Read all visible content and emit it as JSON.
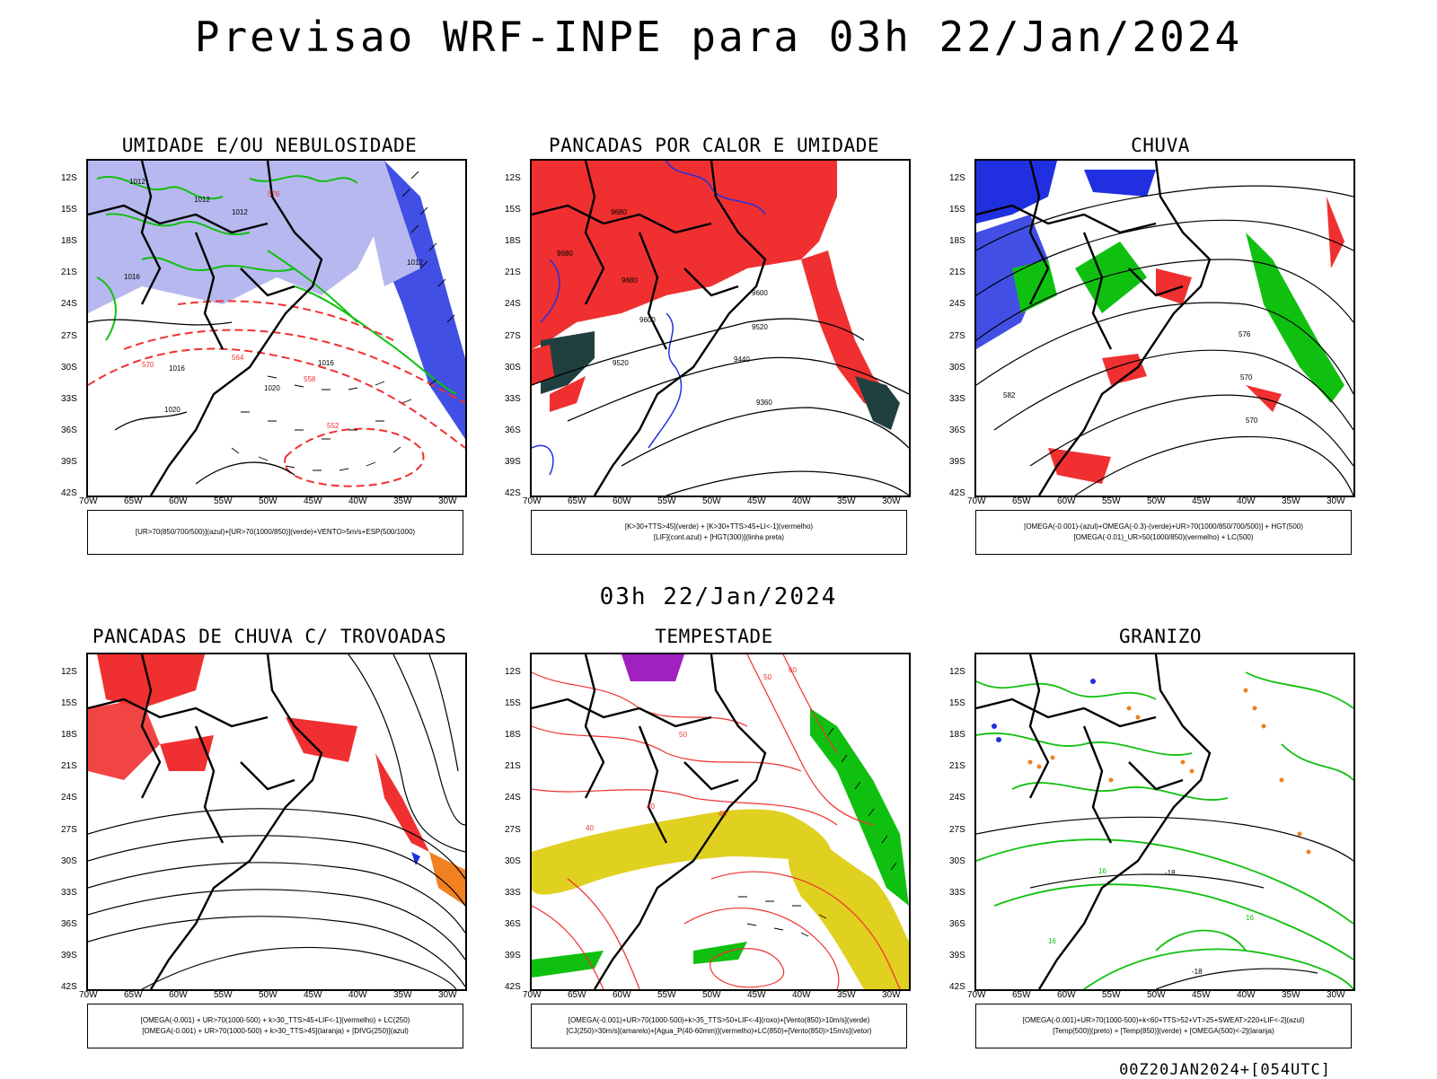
{
  "title": "Previsao WRF-INPE  para 03h 22/Jan/2024",
  "mid_time": "03h 22/Jan/2024",
  "footer": "00Z20JAN2024+[054UTC]",
  "lat_labels": [
    "12S",
    "15S",
    "18S",
    "21S",
    "24S",
    "27S",
    "30S",
    "33S",
    "36S",
    "39S",
    "42S"
  ],
  "lon_labels": [
    "70W",
    "65W",
    "60W",
    "55W",
    "50W",
    "45W",
    "40W",
    "35W",
    "30W"
  ],
  "panels": [
    {
      "title": "UMIDADE E/OU NEBULOSIDADE",
      "legend": [
        "[UR>70(850/700/500)](azul)+[UR>70(1000/850)](verde)+VENTO>5m/s+ESP(500/1000)"
      ],
      "contour_labels": [
        "1012",
        "1012",
        "1012",
        "1012",
        "1016",
        "1016",
        "1020",
        "1020",
        "1016",
        "576",
        "570",
        "564",
        "558",
        "552"
      ]
    },
    {
      "title": "PANCADAS POR CALOR E UMIDADE",
      "legend": [
        "[K>30+TTS>45](verde)  +  [K>30+TTS>45+LI<-1](vermelho)",
        "[LIF](cont.azul)  +  [HGT(300)](linha preta)"
      ],
      "contour_labels": [
        "9680",
        "9680",
        "9680",
        "9600",
        "9600",
        "9520",
        "9520",
        "9440",
        "9360"
      ]
    },
    {
      "title": "CHUVA",
      "legend": [
        "[OMEGA(-0.001)-(azul)+OMEGA(-0.3)-(verde)+UR>70(1000/850/700/500)]  +  HGT(500)",
        "[OMEGA(-0.01)_UR>50(1000/850)(vermelho)  +  LC(500)"
      ],
      "contour_labels": [
        "576",
        "570",
        "570",
        "582"
      ]
    },
    {
      "title": "PANCADAS DE CHUVA C/ TROVOADAS",
      "legend": [
        "[OMEGA(-0.001)  +  UR>70(1000-500)  +  k>30_TTS>45+LIF<-1](vermelho)  +  LC(250)",
        "[OMEGA(-0.001)  +  UR>70(1000-500)  +  k>30_TTS>45](laranja)  +  [DIVG(250)](azul)"
      ],
      "contour_labels": []
    },
    {
      "title": "TEMPESTADE",
      "legend": [
        "[OMEGA(-0.001)+UR>70(1000-500)+k>35_TTS>50+LIF<-4](roxo)+[Vento(850)>10m/s](verde)",
        "[CJ(250)>30m/s](amarelo)+[Agua_P(40-60mm)](vermelho)+LC(850)+[Vento(850)>15m/s](vetor)"
      ],
      "contour_labels": [
        "40",
        "40",
        "40",
        "50",
        "50",
        "60"
      ]
    },
    {
      "title": "GRANIZO",
      "legend": [
        "[OMEGA(-0.001)+UR>70(1000-500)+k<60+TTS>52+VT>25+SWEAT>220+LIF<-2](azul)",
        "[Temp(500)](preto)  +  [Temp(850)](verde)  +  [OMEGA(500)<-2](laranja)"
      ],
      "contour_labels": [
        "-18",
        "-18",
        "16",
        "16",
        "16"
      ]
    }
  ],
  "colors": {
    "blue": "#2030e0",
    "lightblue": "#b0b0f0",
    "green": "#10c010",
    "red": "#f03030",
    "orange": "#f08020",
    "yellow": "#e0d020",
    "purple": "#a020c0",
    "darkteal": "#204040"
  }
}
